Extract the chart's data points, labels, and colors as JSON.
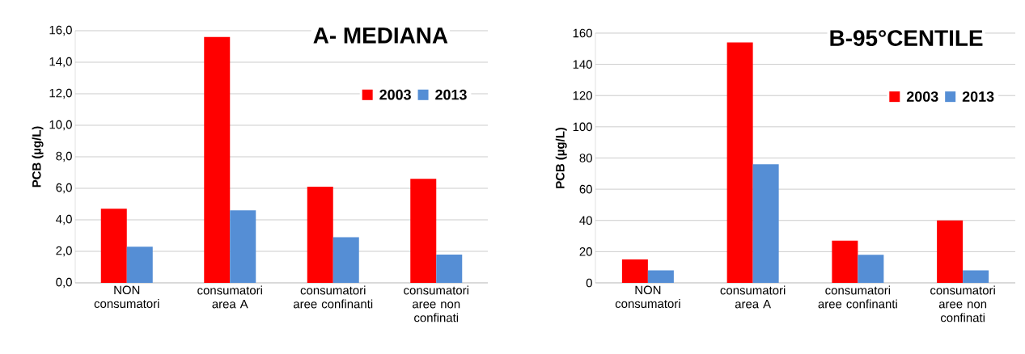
{
  "chart_data": [
    {
      "type": "bar",
      "title": "A- MEDIANA",
      "ylabel": "PCB  (µg/L)",
      "categories": [
        "NON consumatori",
        "consumatori area A",
        "consumatori aree confinanti",
        "consumatori aree non confinati"
      ],
      "series": [
        {
          "name": "2003",
          "color": "#ff0000",
          "values": [
            4.7,
            15.6,
            6.1,
            6.6
          ]
        },
        {
          "name": "2013",
          "color": "#558ed5",
          "values": [
            2.3,
            4.6,
            2.9,
            1.8
          ]
        }
      ],
      "ylim": [
        0,
        16
      ],
      "yticks": [
        {
          "value": 0,
          "label": "0,0"
        },
        {
          "value": 2,
          "label": "2,0"
        },
        {
          "value": 4,
          "label": "4,0"
        },
        {
          "value": 6,
          "label": "6,0"
        },
        {
          "value": 8,
          "label": "8,0"
        },
        {
          "value": 10,
          "label": "10,0"
        },
        {
          "value": 12,
          "label": "12,0"
        },
        {
          "value": 14,
          "label": "14,0"
        },
        {
          "value": 16,
          "label": "16,0"
        }
      ],
      "grid": "y",
      "legend": "top right"
    },
    {
      "type": "bar",
      "title": "B-95°CENTILE",
      "ylabel": "PCB  (µg/L)",
      "categories": [
        "NON consumatori",
        "consumatori area A",
        "consumatori aree confinanti",
        "consumatori aree non confinati"
      ],
      "series": [
        {
          "name": "2003",
          "color": "#ff0000",
          "values": [
            15,
            154,
            27,
            40
          ]
        },
        {
          "name": "2013",
          "color": "#558ed5",
          "values": [
            8,
            76,
            18,
            8
          ]
        }
      ],
      "ylim": [
        0,
        160
      ],
      "yticks": [
        0,
        20,
        40,
        60,
        80,
        100,
        120,
        140,
        160
      ],
      "grid": "y",
      "legend": "top right"
    }
  ]
}
